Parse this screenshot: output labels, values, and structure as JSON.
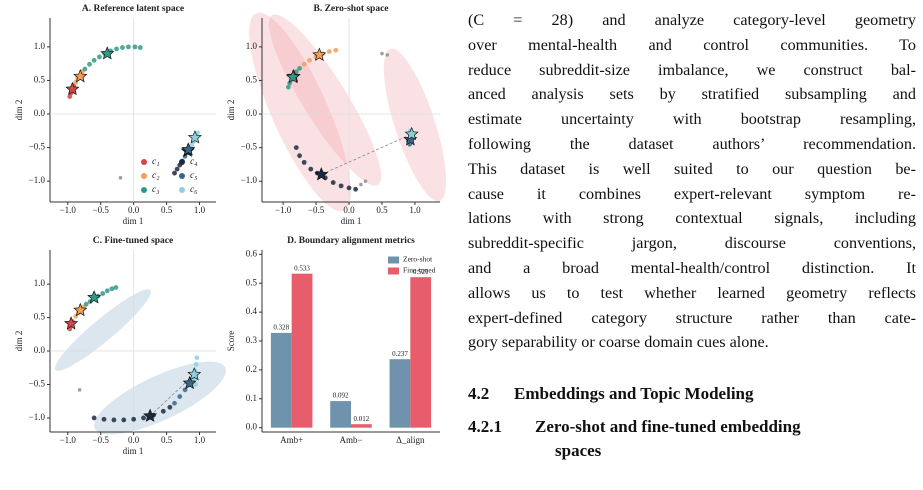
{
  "chart_data": [
    {
      "type": "scatter",
      "title": "A.  Reference latent space",
      "xlabel": "dim 1",
      "ylabel": "dim 2",
      "xlim": [
        -1.27,
        1.25
      ],
      "ylim": [
        -1.31,
        1.43
      ],
      "xticks": [
        {
          "value": -1,
          "label": "−1.0"
        },
        {
          "value": -0.5,
          "label": "−0.5"
        },
        {
          "value": 0,
          "label": "0.0"
        },
        0.5,
        {
          "value": 1,
          "label": "1.0"
        }
      ],
      "yticks": [
        {
          "value": -1,
          "label": "−1.0"
        },
        {
          "value": -0.5,
          "label": "−0.5"
        },
        {
          "value": 0,
          "label": "0.0"
        },
        0.5,
        {
          "value": 1,
          "label": "1.0"
        }
      ],
      "hline": 0,
      "vline": 0,
      "legend": "lower right",
      "series": [
        {
          "name": "c₁",
          "color": "#d64545",
          "x": [
            -0.97,
            -0.95,
            -0.93,
            -0.91
          ],
          "y": [
            0.26,
            0.31,
            0.37,
            0.42
          ],
          "centroid": {
            "x": -0.93,
            "y": 0.37
          }
        },
        {
          "name": "c₂",
          "color": "#f0a05a",
          "x": [
            -0.88,
            -0.85,
            -0.82,
            -0.78
          ],
          "y": [
            0.47,
            0.53,
            0.57,
            0.63
          ],
          "centroid": {
            "x": -0.81,
            "y": 0.56
          }
        },
        {
          "name": "c₃",
          "color": "#2f9a86",
          "x": [
            -0.74,
            -0.67,
            -0.6,
            -0.52,
            -0.44,
            -0.35,
            -0.26,
            -0.17,
            -0.08,
            0.02,
            0.1
          ],
          "y": [
            0.67,
            0.74,
            0.8,
            0.85,
            0.9,
            0.94,
            0.97,
            0.99,
            1.0,
            1.0,
            0.99
          ],
          "centroid": {
            "x": -0.4,
            "y": 0.9
          }
        },
        {
          "name": "c₄",
          "color": "#1b2a41",
          "x": [
            0.62,
            0.66,
            0.7
          ],
          "y": [
            -0.88,
            -0.82,
            -0.76
          ],
          "centroid": {
            "x": 0.82,
            "y": -0.55
          }
        },
        {
          "name": "c₅",
          "color": "#3a6788",
          "x": [
            0.74,
            0.78,
            0.82,
            0.85
          ],
          "y": [
            -0.7,
            -0.63,
            -0.57,
            -0.52
          ],
          "centroid": {
            "x": 0.83,
            "y": -0.53
          }
        },
        {
          "name": "c₆",
          "color": "#8fd0df",
          "x": [
            0.88,
            0.91,
            0.93,
            0.95,
            0.97
          ],
          "y": [
            -0.47,
            -0.41,
            -0.36,
            -0.32,
            -0.28
          ],
          "centroid": {
            "x": 0.93,
            "y": -0.35
          }
        }
      ],
      "noise": {
        "color": "#888888",
        "x": [
          -0.2
        ],
        "y": [
          -0.95
        ]
      }
    },
    {
      "type": "scatter",
      "title": "B.  Zero-shot space",
      "xlabel": "dim 1",
      "ylabel": "dim 2",
      "xlim": [
        -1.32,
        1.38
      ],
      "ylim": [
        -1.31,
        1.43
      ],
      "xticks": [
        {
          "value": -1,
          "label": "−1.0"
        },
        {
          "value": -0.5,
          "label": "−0.5"
        },
        {
          "value": 0,
          "label": "0.0"
        },
        0.5,
        {
          "value": 1,
          "label": "1.0"
        }
      ],
      "yticks": [
        {
          "value": -1,
          "label": "−1.0"
        },
        {
          "value": -0.5,
          "label": "−0.5"
        },
        {
          "value": 0,
          "label": "0.0"
        },
        0.5,
        {
          "value": 1,
          "label": "1.0"
        }
      ],
      "hline": 0,
      "vline": 0,
      "series": [
        {
          "color": "#d64545",
          "x": [
            -0.85
          ],
          "y": [
            0.52
          ],
          "centroid": {
            "x": -0.84,
            "y": 0.56
          }
        },
        {
          "color": "#f0a05a",
          "x": [
            -0.68,
            -0.6,
            -0.5,
            -0.4,
            -0.3,
            -0.2
          ],
          "y": [
            0.74,
            0.8,
            0.85,
            0.9,
            0.93,
            0.95
          ],
          "centroid": {
            "x": -0.45,
            "y": 0.88
          }
        },
        {
          "color": "#2f9a86",
          "x": [
            -0.92,
            -0.9,
            -0.87,
            -0.84,
            -0.8,
            -0.75
          ],
          "y": [
            0.4,
            0.46,
            0.52,
            0.58,
            0.63,
            0.68
          ],
          "centroid": {
            "x": -0.85,
            "y": 0.55
          }
        },
        {
          "color": "#1b2a41",
          "x": [
            -0.8,
            -0.75,
            -0.68,
            -0.58,
            -0.48,
            -0.36,
            -0.24,
            -0.12,
            0.0,
            0.1
          ],
          "y": [
            -0.5,
            -0.62,
            -0.72,
            -0.82,
            -0.88,
            -0.95,
            -1.02,
            -1.07,
            -1.1,
            -1.12
          ],
          "centroid": {
            "x": -0.42,
            "y": -0.9
          }
        },
        {
          "color": "#3a6788",
          "x": [
            0.9,
            0.92
          ],
          "y": [
            -0.4,
            -0.45
          ],
          "centroid": {
            "x": 0.93,
            "y": -0.38
          }
        },
        {
          "color": "#8fd0df",
          "x": [
            0.95,
            0.97,
            0.93
          ],
          "y": [
            -0.28,
            -0.33,
            -0.25
          ],
          "centroid": {
            "x": 0.95,
            "y": -0.3
          }
        }
      ],
      "noise": {
        "color": "#888888",
        "x": [
          0.18,
          0.25,
          0.5,
          0.58
        ],
        "y": [
          -1.05,
          -1.0,
          0.9,
          0.88
        ]
      }
    },
    {
      "type": "scatter",
      "title": "C.  Fine-tuned space",
      "xlabel": "dim 1",
      "ylabel": "dim 2",
      "xlim": [
        -1.27,
        1.25
      ],
      "ylim": [
        -1.21,
        1.51
      ],
      "xticks": [
        {
          "value": -1,
          "label": "−1.0"
        },
        {
          "value": -0.5,
          "label": "−0.5"
        },
        {
          "value": 0,
          "label": "0.0"
        },
        0.5,
        {
          "value": 1,
          "label": "1.0"
        }
      ],
      "yticks": [
        {
          "value": -1,
          "label": "−1.0"
        },
        {
          "value": -0.5,
          "label": "−0.5"
        },
        {
          "value": 0,
          "label": "0.0"
        },
        0.5,
        {
          "value": 1,
          "label": "1.0"
        }
      ],
      "hline": 0,
      "vline": 0,
      "series": [
        {
          "color": "#d64545",
          "x": [
            -0.97,
            -0.95,
            -0.93
          ],
          "y": [
            0.33,
            0.38,
            0.44
          ],
          "centroid": {
            "x": -0.95,
            "y": 0.41
          }
        },
        {
          "color": "#f0a05a",
          "x": [
            -0.88,
            -0.84,
            -0.8,
            -0.76
          ],
          "y": [
            0.52,
            0.57,
            0.62,
            0.66
          ],
          "centroid": {
            "x": -0.81,
            "y": 0.61
          }
        },
        {
          "color": "#2f9a86",
          "x": [
            -0.72,
            -0.66,
            -0.6,
            -0.54,
            -0.47,
            -0.4,
            -0.33,
            -0.27
          ],
          "y": [
            0.7,
            0.74,
            0.78,
            0.82,
            0.86,
            0.9,
            0.93,
            0.95
          ],
          "centroid": {
            "x": -0.6,
            "y": 0.8
          }
        },
        {
          "color": "#1b2a41",
          "x": [
            -0.6,
            -0.45,
            -0.3,
            -0.15,
            0.0,
            0.15,
            0.3,
            0.45,
            0.55
          ],
          "y": [
            -1.0,
            -1.02,
            -1.03,
            -1.03,
            -1.02,
            -1.0,
            -0.96,
            -0.9,
            -0.84
          ],
          "centroid": {
            "x": 0.25,
            "y": -0.97
          }
        },
        {
          "color": "#3a6788",
          "x": [
            0.62,
            0.7,
            0.78,
            0.85
          ],
          "y": [
            -0.78,
            -0.68,
            -0.58,
            -0.5
          ],
          "centroid": {
            "x": 0.85,
            "y": -0.48
          }
        },
        {
          "color": "#8fd0df",
          "x": [
            0.9,
            0.93,
            0.95,
            0.96,
            0.94
          ],
          "y": [
            -0.42,
            -0.3,
            -0.2,
            -0.1,
            -0.5
          ],
          "centroid": {
            "x": 0.92,
            "y": -0.35
          }
        }
      ],
      "noise": {
        "color": "#888888",
        "x": [
          -0.82
        ],
        "y": [
          -0.58
        ]
      }
    },
    {
      "type": "bar",
      "title": "D.  Boundary alignment metrics",
      "ylabel": "Score",
      "categories": [
        "Amb+",
        "Amb−",
        "Δ_align"
      ],
      "ylim": [
        -0.015,
        0.615
      ],
      "yticks": [
        {
          "value": 0,
          "label": "0.0"
        },
        0.1,
        0.2,
        0.3,
        0.4,
        0.5,
        0.6
      ],
      "legend": "upper right",
      "series": [
        {
          "name": "Zero-shot",
          "color": "#6f92ad",
          "values": [
            0.328,
            0.092,
            0.237
          ]
        },
        {
          "name": "Fine-tuned",
          "color": "#e85d6c",
          "values": [
            0.533,
            0.012,
            0.521
          ]
        }
      ]
    }
  ],
  "document": {
    "paragraph_lines": [
      "(C = 28) and analyze category-level geometry",
      "over mental-health and control communities. To",
      "reduce subreddit-size imbalance, we construct bal-",
      "anced analysis sets by stratified subsampling and",
      "estimate uncertainty with bootstrap resampling,",
      "following the dataset authors’ recommendation.",
      "This dataset is well suited to our question be-",
      "cause it combines expert-relevant symptom re-",
      "lations with strong contextual signals, including",
      "subreddit-specific jargon, discourse conventions,",
      "and a broad mental-health/control distinction. It",
      "allows us to test whether learned geometry reflects",
      "expert-defined category structure rather than cate-",
      "gory separability or coarse domain cues alone."
    ],
    "section": {
      "number": "4.2",
      "title": "Embeddings and Topic Modeling"
    },
    "subsection": {
      "number": "4.2.1",
      "title_lines": [
        "Zero-shot and fine-tuned embedding",
        "spaces"
      ]
    }
  }
}
